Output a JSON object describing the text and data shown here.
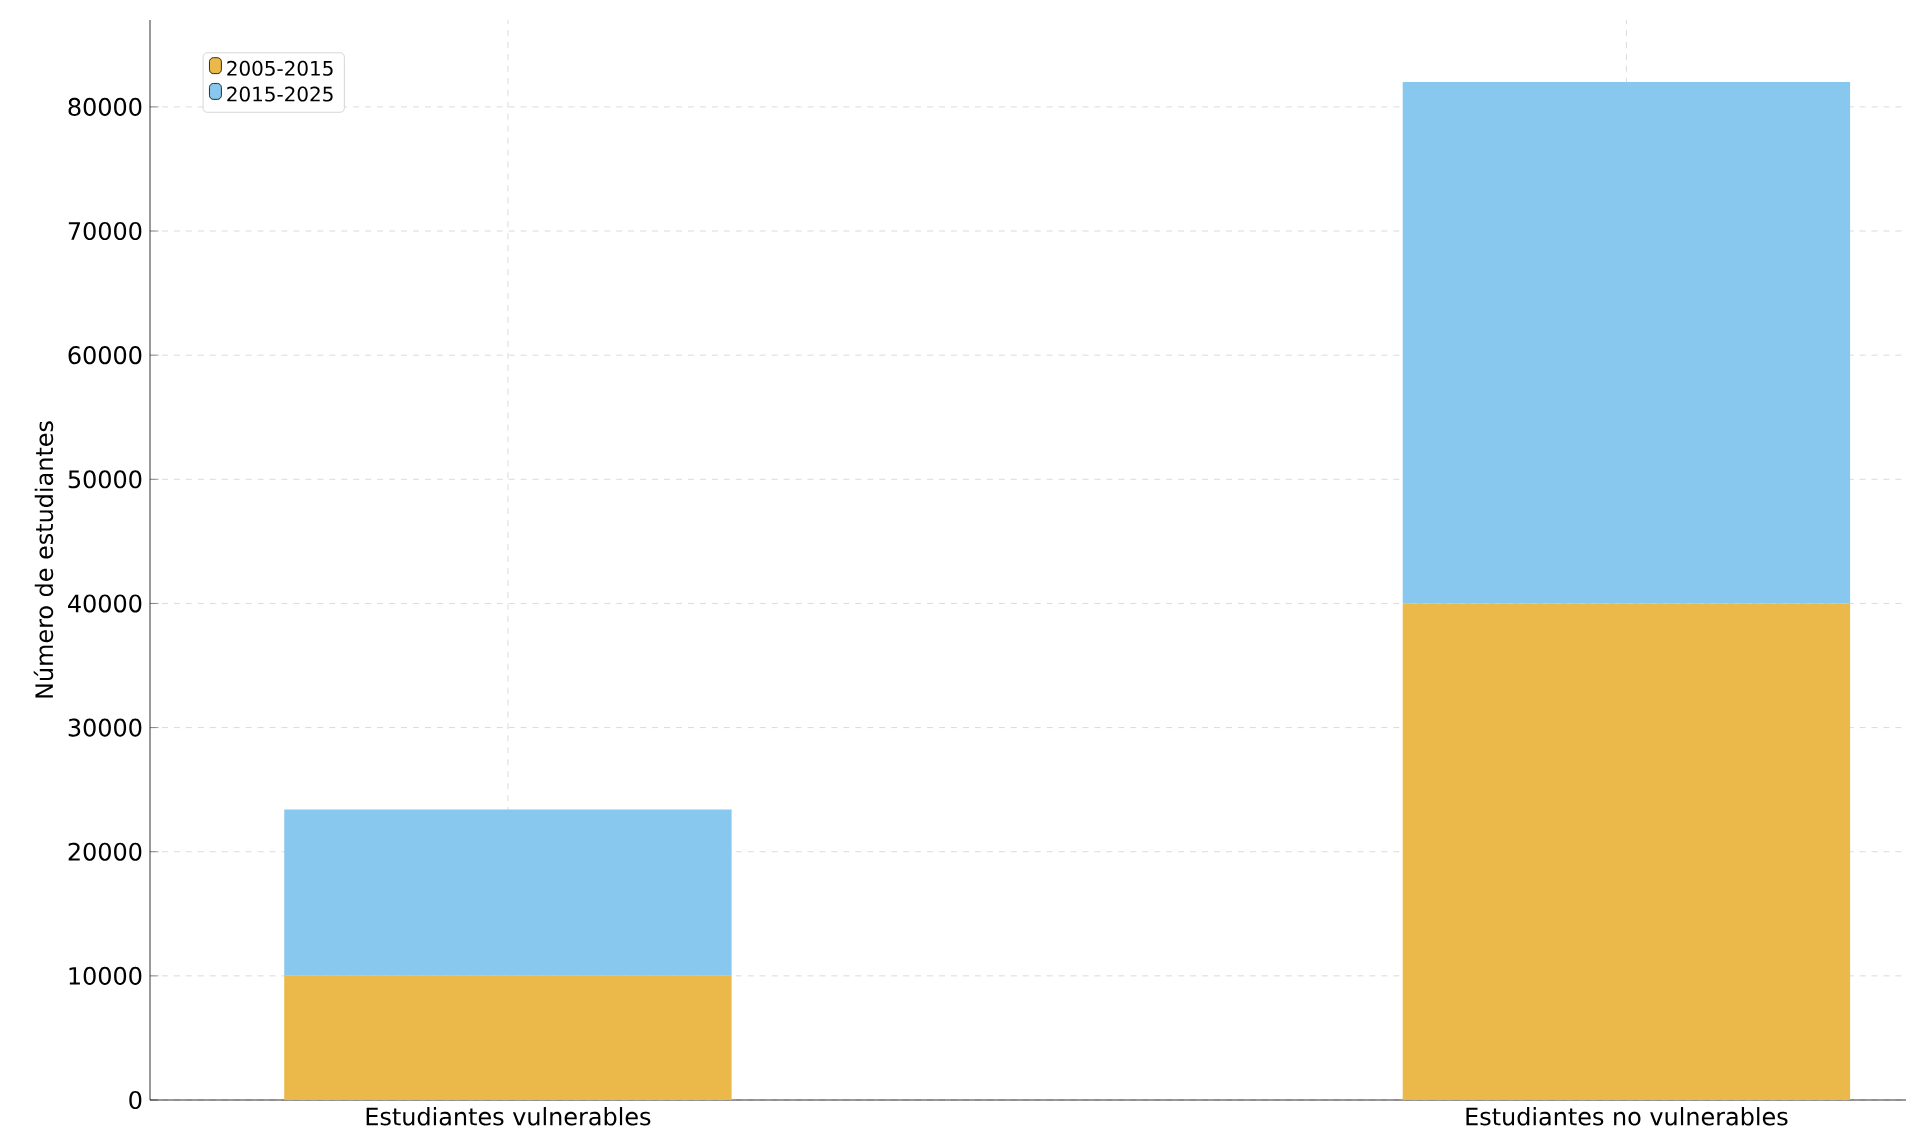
{
  "chart_data": {
    "type": "bar",
    "stacked": true,
    "ylabel": "Número de estudiantes",
    "categories": [
      "Estudiantes vulnerables",
      "Estudiantes no vulnerables"
    ],
    "series": [
      {
        "name": "2005-2015",
        "color": "#ebb84a",
        "values": [
          10000,
          40000
        ]
      },
      {
        "name": "2015-2025",
        "color": "#88c8ee",
        "values": [
          13400,
          42000
        ]
      }
    ],
    "ylim": [
      0,
      87000
    ],
    "yticks": [
      0,
      10000,
      20000,
      30000,
      40000,
      50000,
      60000,
      70000,
      80000
    ],
    "grid": true,
    "legend": "top left"
  }
}
